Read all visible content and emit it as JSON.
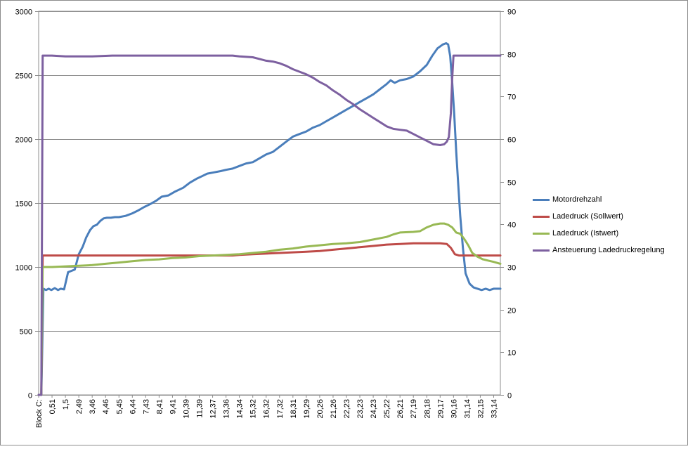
{
  "chart_data": {
    "type": "line",
    "title": "",
    "xlabel": "",
    "ylabel": "",
    "y2label": "",
    "ylim": [
      0,
      3000
    ],
    "y2lim": [
      0,
      90
    ],
    "yticks": [
      0,
      500,
      1000,
      1500,
      2000,
      2500,
      3000
    ],
    "y2ticks": [
      0,
      10,
      20,
      30,
      40,
      50,
      60,
      70,
      80,
      90
    ],
    "grid": "horizontal",
    "legend_position": "right",
    "x_tick_labels": [
      "Block C:",
      "0,51",
      "1,5",
      "2,49",
      "3,46",
      "4,46",
      "5,45",
      "6,44",
      "7,43",
      "8,41",
      "9,41",
      "10,39",
      "11,39",
      "12,37",
      "13,36",
      "14,34",
      "15,32",
      "16,32",
      "17,32",
      "18,31",
      "19,29",
      "20,26",
      "21,26",
      "22,23",
      "23,23",
      "24,23",
      "25,22",
      "26,21",
      "27,19",
      "28,18",
      "29,17",
      "30,16",
      "31,14",
      "32,15",
      "33,14"
    ],
    "x_range": [
      0,
      34.5
    ],
    "series": [
      {
        "name": "Motordrehzahl",
        "axis": "left",
        "color": "#4a7ebb",
        "x": [
          0,
          0.2,
          0.35,
          0.55,
          0.75,
          0.95,
          1.2,
          1.45,
          1.65,
          1.9,
          2.2,
          2.45,
          2.7,
          3.0,
          3.3,
          3.55,
          3.85,
          4.1,
          4.35,
          4.6,
          4.85,
          5.1,
          5.4,
          5.7,
          6.0,
          6.5,
          7.0,
          7.4,
          7.9,
          8.3,
          8.8,
          9.2,
          9.7,
          10.2,
          10.8,
          11.3,
          11.8,
          12.2,
          12.6,
          13.1,
          13.6,
          14.0,
          14.5,
          15.0,
          15.5,
          16.0,
          16.5,
          17.0,
          17.5,
          18.0,
          18.5,
          19.0,
          19.5,
          20.0,
          20.5,
          21.0,
          21.5,
          22.0,
          22.5,
          23.0,
          23.5,
          24.0,
          24.5,
          25.0,
          25.5,
          26.0,
          26.3,
          26.6,
          27.0,
          27.5,
          28.0,
          28.5,
          29.0,
          29.4,
          29.8,
          30.2,
          30.45,
          30.6,
          30.75,
          30.9,
          31.05,
          31.2,
          31.35,
          31.5,
          31.7,
          31.9,
          32.2,
          32.5,
          32.8,
          33.1,
          33.4,
          33.7,
          34.0,
          34.3,
          34.5
        ],
        "values": [
          0,
          0,
          830,
          820,
          830,
          820,
          835,
          820,
          830,
          825,
          960,
          970,
          980,
          1100,
          1160,
          1230,
          1290,
          1320,
          1330,
          1360,
          1380,
          1385,
          1385,
          1390,
          1390,
          1400,
          1420,
          1440,
          1470,
          1490,
          1520,
          1550,
          1560,
          1590,
          1620,
          1660,
          1690,
          1710,
          1730,
          1740,
          1750,
          1760,
          1770,
          1790,
          1810,
          1820,
          1850,
          1880,
          1900,
          1940,
          1980,
          2020,
          2040,
          2060,
          2090,
          2110,
          2140,
          2170,
          2200,
          2230,
          2260,
          2290,
          2320,
          2350,
          2390,
          2430,
          2460,
          2440,
          2460,
          2470,
          2490,
          2530,
          2580,
          2650,
          2710,
          2740,
          2750,
          2740,
          2650,
          2450,
          2200,
          1900,
          1650,
          1400,
          1150,
          950,
          870,
          840,
          830,
          820,
          830,
          820,
          830,
          830,
          830
        ]
      },
      {
        "name": "Ladedruck (Sollwert)",
        "axis": "left",
        "color": "#be4b48",
        "x": [
          0,
          0.2,
          0.3,
          1.0,
          5.0,
          10.0,
          14.5,
          15.0,
          16.0,
          17.0,
          18.0,
          19.0,
          20.0,
          21.0,
          22.0,
          23.0,
          24.0,
          25.0,
          26.0,
          27.0,
          28.0,
          29.0,
          30.0,
          30.5,
          30.8,
          31.1,
          31.4,
          32.0,
          33.0,
          34.0,
          34.5
        ],
        "values": [
          0,
          0,
          1090,
          1090,
          1090,
          1090,
          1090,
          1095,
          1100,
          1105,
          1110,
          1115,
          1120,
          1125,
          1135,
          1145,
          1155,
          1165,
          1175,
          1180,
          1185,
          1185,
          1185,
          1180,
          1150,
          1100,
          1090,
          1090,
          1090,
          1090,
          1090
        ]
      },
      {
        "name": "Ladedruck (Istwert)",
        "axis": "left",
        "color": "#98b954",
        "x": [
          0,
          0.2,
          0.3,
          1.0,
          2.0,
          3.0,
          4.0,
          5.0,
          6.0,
          7.0,
          8.0,
          9.0,
          10.0,
          11.0,
          12.0,
          13.0,
          14.0,
          15.0,
          16.0,
          17.0,
          18.0,
          19.0,
          20.0,
          21.0,
          22.0,
          23.0,
          24.0,
          25.0,
          26.0,
          26.5,
          27.0,
          28.0,
          28.5,
          29.0,
          29.5,
          30.0,
          30.3,
          30.6,
          30.9,
          31.2,
          31.5,
          31.8,
          32.1,
          32.4,
          32.8,
          33.2,
          33.6,
          34.0,
          34.5
        ],
        "values": [
          0,
          0,
          1000,
          1000,
          1005,
          1010,
          1015,
          1025,
          1035,
          1045,
          1055,
          1060,
          1070,
          1075,
          1085,
          1090,
          1095,
          1100,
          1110,
          1120,
          1135,
          1145,
          1160,
          1170,
          1180,
          1185,
          1195,
          1215,
          1235,
          1255,
          1270,
          1275,
          1280,
          1310,
          1330,
          1340,
          1340,
          1330,
          1310,
          1270,
          1260,
          1220,
          1170,
          1110,
          1080,
          1060,
          1050,
          1040,
          1025
        ]
      },
      {
        "name": "Ansteuerung Ladedruckregelung",
        "axis": "right",
        "color": "#7d60a0",
        "x": [
          0,
          0.2,
          0.3,
          1.0,
          2.0,
          4.0,
          5.5,
          8.0,
          12.0,
          14.5,
          15.0,
          16.0,
          16.5,
          17.0,
          17.5,
          18.0,
          18.5,
          19.0,
          19.5,
          20.0,
          20.5,
          21.0,
          21.5,
          22.0,
          22.5,
          23.0,
          23.5,
          24.0,
          24.5,
          25.0,
          25.5,
          26.0,
          26.5,
          27.0,
          27.5,
          28.0,
          28.5,
          29.0,
          29.5,
          30.0,
          30.3,
          30.5,
          30.65,
          30.8,
          30.9,
          31.0,
          31.5,
          32.0,
          33.0,
          34.0,
          34.5
        ],
        "values": [
          0,
          0,
          79.6,
          79.6,
          79.4,
          79.4,
          79.6,
          79.6,
          79.6,
          79.6,
          79.4,
          79.2,
          78.8,
          78.4,
          78.2,
          77.8,
          77.2,
          76.4,
          75.8,
          75.2,
          74.4,
          73.4,
          72.6,
          71.4,
          70.4,
          69.2,
          68.2,
          67.0,
          66.0,
          65.0,
          64.0,
          63.0,
          62.4,
          62.2,
          62.0,
          61.2,
          60.4,
          59.6,
          58.8,
          58.6,
          58.8,
          59.4,
          60.5,
          66.0,
          74.0,
          79.6,
          79.6,
          79.6,
          79.6,
          79.6,
          79.6
        ]
      }
    ]
  }
}
